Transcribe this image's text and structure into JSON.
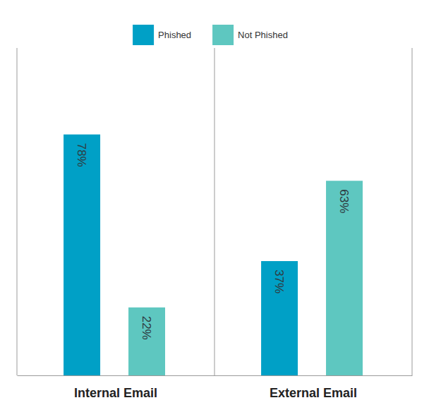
{
  "chart_data": {
    "type": "bar",
    "categories": [
      "Internal Email",
      "External Email"
    ],
    "series": [
      {
        "name": "Phished",
        "color": "#00a0c6",
        "values": [
          78,
          37
        ],
        "value_labels": [
          "78%",
          "37%"
        ]
      },
      {
        "name": "Not Phished",
        "color": "#5ec7c0",
        "values": [
          22,
          63
        ],
        "value_labels": [
          "22%",
          "63%"
        ]
      }
    ],
    "ylim": [
      0,
      106
    ],
    "data_labels": true,
    "legend": "top",
    "tick_labels": "x"
  }
}
